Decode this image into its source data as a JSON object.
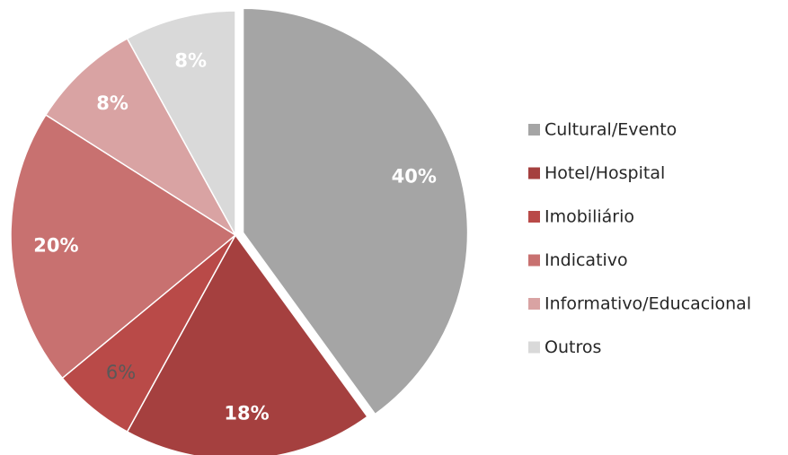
{
  "chart_data": {
    "type": "pie",
    "categories": [
      "Cultural/Evento",
      "Hotel/Hospital",
      "Imobiliário",
      "Indicativo",
      "Informativo/Educacional",
      "Outros"
    ],
    "values": [
      40,
      18,
      6,
      20,
      8,
      8
    ],
    "value_labels": [
      "40%",
      "18%",
      "6%",
      "20%",
      "8%",
      "8%"
    ],
    "colors": [
      "#a5a5a5",
      "#a5403f",
      "#b94a48",
      "#c87170",
      "#d9a3a3",
      "#d9d9d9"
    ],
    "legend": "right"
  }
}
